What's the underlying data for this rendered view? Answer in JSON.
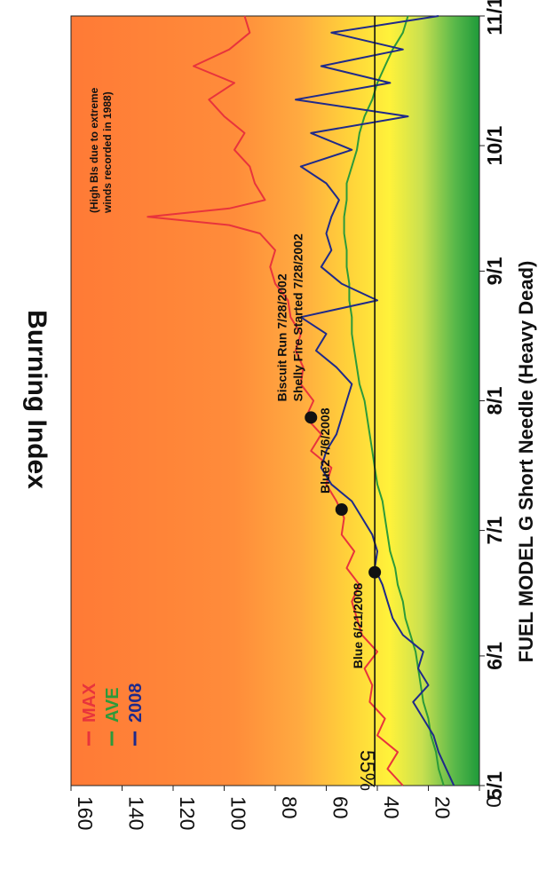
{
  "chart_data": {
    "type": "line",
    "xlabel": "FUEL MODEL G Short Needle (Heavy Dead)",
    "ylabel": "Burning Index",
    "ylim": [
      0,
      160
    ],
    "yticks": [
      0,
      20,
      40,
      60,
      80,
      100,
      120,
      140,
      160
    ],
    "xlim": [
      0,
      184
    ],
    "xticks": [
      {
        "pos": 0,
        "label": "5/1"
      },
      {
        "pos": 31,
        "label": "6/1"
      },
      {
        "pos": 61,
        "label": "7/1"
      },
      {
        "pos": 92,
        "label": "8/1"
      },
      {
        "pos": 123,
        "label": "9/1"
      },
      {
        "pos": 153,
        "label": "10/1"
      },
      {
        "pos": 184,
        "label": "11/1"
      }
    ],
    "threshold": {
      "value": 41,
      "label": "55%"
    },
    "legend": {
      "position": "top-left",
      "entries": [
        {
          "label": "MAX",
          "color": "#e8343c"
        },
        {
          "label": "AVE",
          "color": "#2c9a3a"
        },
        {
          "label": "2008",
          "color": "#1f2a8a"
        }
      ]
    },
    "series": [
      {
        "name": "MAX",
        "color": "#e8343c",
        "x": [
          0,
          4,
          8,
          12,
          16,
          20,
          24,
          28,
          32,
          36,
          40,
          44,
          48,
          52,
          56,
          60,
          64,
          68,
          72,
          76,
          80,
          84,
          88,
          92,
          96,
          100,
          104,
          108,
          112,
          116,
          120,
          124,
          128,
          132,
          134,
          136,
          138,
          140,
          144,
          148,
          152,
          156,
          160,
          164,
          168,
          172,
          176,
          180,
          184
        ],
        "y": [
          30,
          36,
          32,
          40,
          37,
          43,
          42,
          45,
          40,
          46,
          48,
          50,
          47,
          52,
          49,
          54,
          53,
          56,
          60,
          58,
          66,
          62,
          68,
          65,
          70,
          69,
          72,
          70,
          74,
          75,
          80,
          82,
          80,
          86,
          98,
          130,
          98,
          84,
          88,
          90,
          96,
          92,
          100,
          106,
          96,
          112,
          98,
          90,
          92
        ]
      },
      {
        "name": "AVE",
        "color": "#2c9a3a",
        "x": [
          0,
          4,
          8,
          12,
          16,
          20,
          24,
          28,
          32,
          36,
          40,
          44,
          48,
          52,
          56,
          60,
          64,
          68,
          72,
          76,
          80,
          84,
          88,
          92,
          96,
          100,
          104,
          108,
          112,
          116,
          120,
          124,
          128,
          132,
          136,
          140,
          144,
          148,
          152,
          156,
          160,
          164,
          168,
          172,
          176,
          180,
          184
        ],
        "y": [
          14,
          16,
          17,
          19,
          20,
          22,
          23,
          24,
          25,
          27,
          29,
          30,
          32,
          33,
          35,
          36,
          37,
          38,
          40,
          41,
          42,
          43,
          44,
          45,
          47,
          48,
          49,
          50,
          50,
          51,
          51,
          52,
          52,
          53,
          53,
          52,
          52,
          50,
          48,
          47,
          45,
          42,
          40,
          37,
          34,
          30,
          28
        ]
      },
      {
        "name": "2008",
        "color": "#1f2a8a",
        "x": [
          0,
          4,
          8,
          12,
          16,
          20,
          24,
          28,
          32,
          36,
          40,
          44,
          48,
          52,
          56,
          60,
          64,
          68,
          72,
          76,
          80,
          84,
          88,
          92,
          96,
          100,
          104,
          108,
          112,
          116,
          120,
          124,
          128,
          132,
          136,
          140,
          144,
          148,
          152,
          156,
          160,
          164,
          168,
          172,
          176,
          180,
          184
        ],
        "y": [
          10,
          13,
          16,
          18,
          22,
          26,
          20,
          24,
          22,
          30,
          34,
          36,
          38,
          41,
          40,
          42,
          46,
          50,
          58,
          62,
          60,
          56,
          54,
          52,
          50,
          56,
          64,
          60,
          70,
          40,
          54,
          62,
          58,
          60,
          58,
          55,
          60,
          70,
          50,
          66,
          28,
          72,
          35,
          62,
          30,
          58,
          16
        ]
      }
    ],
    "points": [
      {
        "label": "Blue 6/21/2008",
        "x": 51,
        "y": 41
      },
      {
        "label": "Blue2 7/6/2008",
        "x": 66,
        "y": 54
      },
      {
        "label": "Biscuit Run 7/28/2002",
        "x": 88,
        "y": 66,
        "label2": "Shelly Fire Started 7/28/2002"
      }
    ],
    "annotations": [
      {
        "line1": "(High BIs due to extreme",
        "line2": "winds recorded in 1988)"
      }
    ]
  }
}
